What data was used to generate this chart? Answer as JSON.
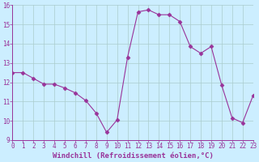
{
  "x": [
    0,
    1,
    2,
    3,
    4,
    5,
    6,
    7,
    8,
    9,
    10,
    11,
    12,
    13,
    14,
    15,
    16,
    17,
    18,
    19,
    20,
    21,
    22,
    23
  ],
  "y": [
    12.5,
    12.5,
    12.2,
    11.9,
    11.9,
    11.7,
    11.45,
    11.05,
    10.4,
    9.4,
    10.05,
    13.3,
    15.65,
    15.75,
    15.5,
    15.5,
    15.15,
    13.85,
    13.5,
    13.85,
    11.85,
    10.15,
    9.9,
    11.3
  ],
  "line_color": "#993399",
  "marker": "D",
  "marker_size": 2.5,
  "xlabel": "Windchill (Refroidissement éolien,°C)",
  "xlim": [
    0,
    23
  ],
  "ylim": [
    9,
    16
  ],
  "xticks": [
    0,
    1,
    2,
    3,
    4,
    5,
    6,
    7,
    8,
    9,
    10,
    11,
    12,
    13,
    14,
    15,
    16,
    17,
    18,
    19,
    20,
    21,
    22,
    23
  ],
  "yticks": [
    9,
    10,
    11,
    12,
    13,
    14,
    15,
    16
  ],
  "background_color": "#cceeff",
  "grid_color": "#aacccc",
  "line_color2": "#993399",
  "tick_fontsize": 5.5,
  "xlabel_fontsize": 6.5
}
